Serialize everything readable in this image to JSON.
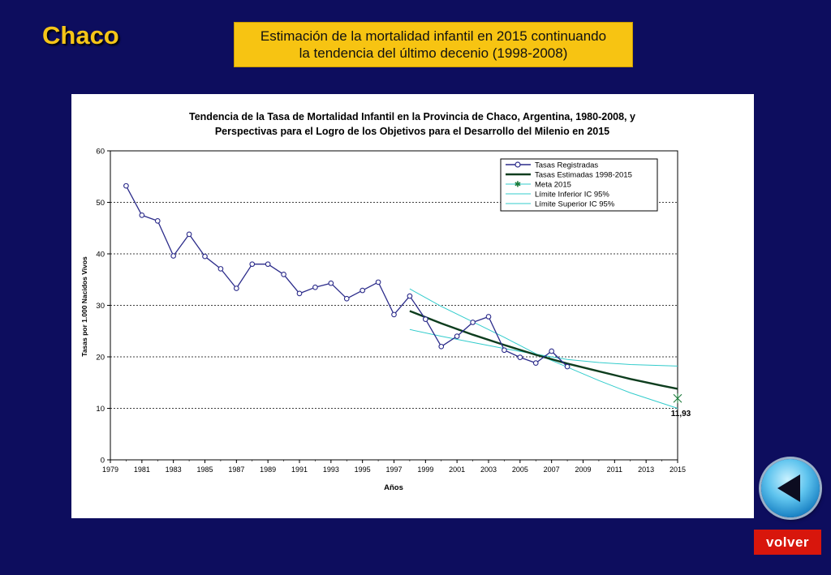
{
  "slide": {
    "region_title": "Chaco",
    "header_line1": "Estimación de la mortalidad infantil en 2015 continuando",
    "header_line2": "la tendencia del último decenio (1998-2008)",
    "back_label": "volver"
  },
  "colors": {
    "background": "#0d0d5e",
    "title": "#f5c518",
    "header_box": "#f7c412",
    "registered": "#2b2b8a",
    "estimated": "#0d3d1e",
    "ci": "#33cccc",
    "goal": "#1b7a3a",
    "volver": "#d8160c"
  },
  "chart_data": {
    "type": "line",
    "title_line1": "Tendencia de la Tasa de Mortalidad Infantil en la Provincia de Chaco, Argentina, 1980-2008, y",
    "title_line2": "Perspectivas para el Logro de los Objetivos para el Desarrollo del Milenio en 2015",
    "xlabel": "Años",
    "ylabel": "Tasas por 1.000 Nacidos Vivos",
    "xlim": [
      1979,
      2015
    ],
    "ylim": [
      0,
      60
    ],
    "x_ticks": [
      "1979",
      "1981",
      "1983",
      "1985",
      "1987",
      "1989",
      "1991",
      "1993",
      "1995",
      "1997",
      "1999",
      "2001",
      "2003",
      "2005",
      "2007",
      "2009",
      "2011",
      "2013",
      "2015"
    ],
    "y_ticks": [
      "0",
      "10",
      "20",
      "30",
      "40",
      "50",
      "60"
    ],
    "grid": "horizontal dashed",
    "legend_position": "top-right",
    "legend": [
      "Tasas Registradas",
      "Tasas Estimadas 1998-2015",
      "Meta 2015",
      "Límite Inferior IC 95%",
      "Límite Superior IC 95%"
    ],
    "series": [
      {
        "name": "Tasas Registradas",
        "x": [
          1980,
          1981,
          1982,
          1983,
          1984,
          1985,
          1986,
          1987,
          1988,
          1989,
          1990,
          1991,
          1992,
          1993,
          1994,
          1995,
          1996,
          1997,
          1998,
          1999,
          2000,
          2001,
          2002,
          2003,
          2004,
          2005,
          2006,
          2007,
          2008
        ],
        "y": [
          53.2,
          47.5,
          46.4,
          39.6,
          43.8,
          39.5,
          37.1,
          33.3,
          38.0,
          38.0,
          36.0,
          32.3,
          33.5,
          34.3,
          31.3,
          32.9,
          34.5,
          28.2,
          31.8,
          27.3,
          22.0,
          24.0,
          26.7,
          27.8,
          21.3,
          19.9,
          18.8,
          21.1,
          18.1
        ]
      },
      {
        "name": "Tasas Estimadas 1998-2015",
        "x": [
          1998,
          2000,
          2002,
          2004,
          2006,
          2008,
          2010,
          2012,
          2014,
          2015
        ],
        "y": [
          28.9,
          26.5,
          24.3,
          22.3,
          20.4,
          18.7,
          17.2,
          15.7,
          14.4,
          13.8
        ]
      },
      {
        "name": "Límite Inferior IC 95%",
        "x": [
          1998,
          2000,
          2002,
          2004,
          2006,
          2008,
          2010,
          2012,
          2014,
          2015
        ],
        "y": [
          33.2,
          29.8,
          26.8,
          23.8,
          20.6,
          18.0,
          15.4,
          13.0,
          11.0,
          10.0
        ]
      },
      {
        "name": "Límite Superior IC 95%",
        "x": [
          1998,
          2000,
          2002,
          2004,
          2006,
          2008,
          2010,
          2012,
          2014,
          2015
        ],
        "y": [
          25.3,
          24.0,
          22.8,
          21.6,
          20.5,
          19.5,
          18.9,
          18.5,
          18.3,
          18.2
        ]
      }
    ],
    "goal": {
      "name": "Meta 2015",
      "x": 2015,
      "y": 11.93,
      "label": "11,93"
    }
  }
}
